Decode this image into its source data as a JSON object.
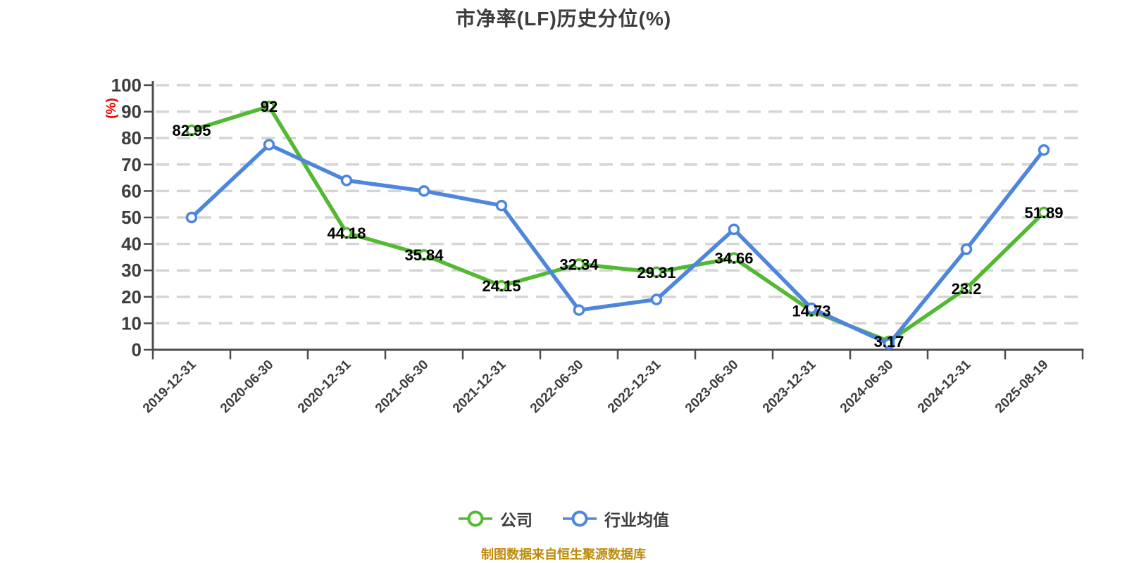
{
  "title": "市净率(LF)历史分位(%)",
  "legend": {
    "items": [
      {
        "label": "公司",
        "color": "#53b832"
      },
      {
        "label": "行业均值",
        "color": "#4e86de"
      }
    ]
  },
  "footer": {
    "caption": "制图数据来自恒生聚源数据库"
  },
  "colors": {
    "company_green": "#53b832",
    "industry_blue": "#4e86de",
    "grid": "#d5d5d5",
    "axis": "#4d4d4d",
    "tick_text": "#3d3d3d",
    "value_label": "#000000",
    "y_unit_red": "#e60000",
    "caption_gold": "#be8a0a",
    "title_text": "#3c3c3c"
  },
  "chart_data": {
    "type": "line",
    "title": "市净率(LF)历史分位(%)",
    "ylabel": "(%)",
    "ylim": [
      0,
      100
    ],
    "y_ticks": [
      0,
      10,
      20,
      30,
      40,
      50,
      60,
      70,
      80,
      90,
      100
    ],
    "grid": "horizontal dashed",
    "legend_position": "bottom",
    "categories": [
      "2019-12-31",
      "2020-06-30",
      "2020-12-31",
      "2021-06-30",
      "2021-12-31",
      "2022-06-30",
      "2022-12-31",
      "2023-06-30",
      "2023-12-31",
      "2024-06-30",
      "2024-12-31",
      "2025-08-19"
    ],
    "series": [
      {
        "name": "公司",
        "color": "#53b832",
        "labeled": true,
        "values": [
          82.95,
          92,
          44.18,
          35.84,
          24.15,
          32.34,
          29.31,
          34.66,
          14.73,
          3.17,
          23.2,
          51.89
        ]
      },
      {
        "name": "行业均值",
        "color": "#4e86de",
        "labeled": false,
        "values": [
          50,
          77.5,
          64,
          60,
          54.5,
          15,
          19,
          45.5,
          15.7,
          2.2,
          38,
          75.5
        ]
      }
    ]
  }
}
